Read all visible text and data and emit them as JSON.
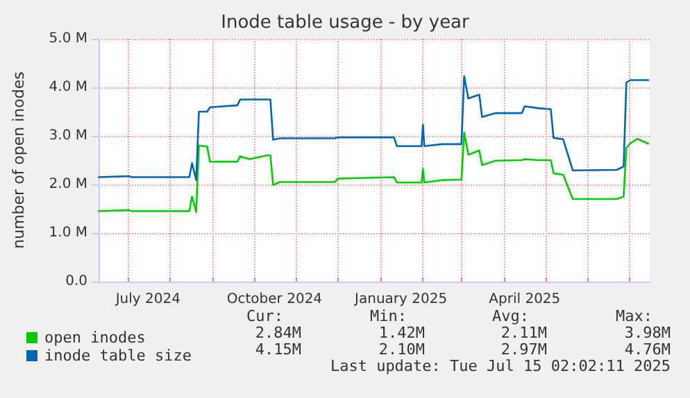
{
  "chart_data": {
    "type": "line",
    "title": "Inode table usage - by year",
    "ylabel": "number of open inodes",
    "x": [
      "2024-06-10",
      "2024-07-02",
      "2024-07-04",
      "2024-08-15",
      "2024-08-17",
      "2024-08-20",
      "2024-08-22",
      "2024-08-28",
      "2024-08-30",
      "2024-09-19",
      "2024-09-21",
      "2024-09-28",
      "2024-10-11",
      "2024-10-13",
      "2024-10-15",
      "2024-10-20",
      "2024-11-29",
      "2024-12-01",
      "2025-01-11",
      "2025-01-13",
      "2025-01-31",
      "2025-02-01",
      "2025-02-02",
      "2025-02-15",
      "2025-03-01",
      "2025-03-03",
      "2025-03-06",
      "2025-03-14",
      "2025-03-16",
      "2025-03-26",
      "2025-04-14",
      "2025-04-16",
      "2025-04-26",
      "2025-05-05",
      "2025-05-07",
      "2025-05-14",
      "2025-05-21",
      "2025-06-22",
      "2025-06-27",
      "2025-06-29",
      "2025-07-02",
      "2025-07-07",
      "2025-07-15"
    ],
    "series": [
      {
        "name": "open inodes",
        "color": "#00cc00",
        "values": [
          1.45,
          1.47,
          1.45,
          1.45,
          1.75,
          1.43,
          2.8,
          2.78,
          2.47,
          2.47,
          2.58,
          2.52,
          2.6,
          2.6,
          1.99,
          2.05,
          2.05,
          2.12,
          2.15,
          2.04,
          2.04,
          2.32,
          2.04,
          2.09,
          2.1,
          3.07,
          2.61,
          2.7,
          2.4,
          2.49,
          2.5,
          2.52,
          2.5,
          2.5,
          2.23,
          2.2,
          1.7,
          1.7,
          1.75,
          2.75,
          2.85,
          2.94,
          2.84
        ]
      },
      {
        "name": "inode table size",
        "color": "#0066b3",
        "values": [
          2.15,
          2.17,
          2.15,
          2.15,
          2.44,
          2.09,
          3.5,
          3.5,
          3.59,
          3.63,
          3.75,
          3.75,
          3.75,
          3.75,
          2.92,
          2.95,
          2.95,
          2.97,
          2.97,
          2.79,
          2.79,
          3.23,
          2.79,
          2.83,
          2.83,
          4.23,
          3.77,
          3.85,
          3.39,
          3.47,
          3.47,
          3.61,
          3.57,
          3.55,
          2.96,
          2.93,
          2.29,
          2.3,
          2.37,
          4.1,
          4.15,
          4.15,
          4.15
        ]
      }
    ],
    "xlim": [
      "2024-06-10",
      "2025-07-16"
    ],
    "xticks": [
      {
        "value": "2024-07-01",
        "label": null
      },
      {
        "value": "2024-07-16",
        "label": "July 2024"
      },
      {
        "value": "2024-08-01",
        "label": null
      },
      {
        "value": "2024-09-01",
        "label": null
      },
      {
        "value": "2024-10-01",
        "label": null
      },
      {
        "value": "2024-10-16",
        "label": "October 2024"
      },
      {
        "value": "2024-11-01",
        "label": null
      },
      {
        "value": "2024-12-01",
        "label": null
      },
      {
        "value": "2025-01-01",
        "label": null
      },
      {
        "value": "2025-01-16",
        "label": "January 2025"
      },
      {
        "value": "2025-02-01",
        "label": null
      },
      {
        "value": "2025-03-01",
        "label": null
      },
      {
        "value": "2025-04-01",
        "label": null
      },
      {
        "value": "2025-04-16",
        "label": "April 2025"
      },
      {
        "value": "2025-05-01",
        "label": null
      },
      {
        "value": "2025-06-01",
        "label": null
      },
      {
        "value": "2025-07-01",
        "label": null
      }
    ],
    "ylim": [
      0,
      5
    ],
    "yticks": [
      {
        "value": 0,
        "label": "0.0"
      },
      {
        "value": 1,
        "label": "1.0 M"
      },
      {
        "value": 2,
        "label": "2.0 M"
      },
      {
        "value": 3,
        "label": "3.0 M"
      },
      {
        "value": 4,
        "label": "4.0 M"
      },
      {
        "value": 5,
        "label": "5.0 M"
      }
    ],
    "grid": true,
    "legend": "bottom",
    "marker": "none",
    "line_style": "solid",
    "annotations": [
      "Cur:",
      "Min:",
      "Avg:",
      "Max:",
      "2.84M",
      "1.42M",
      "2.11M",
      "3.98M",
      "4.15M",
      "2.10M",
      "2.97M",
      "4.76M",
      "Last update: Tue Jul 15 02:02:11 2025"
    ]
  }
}
